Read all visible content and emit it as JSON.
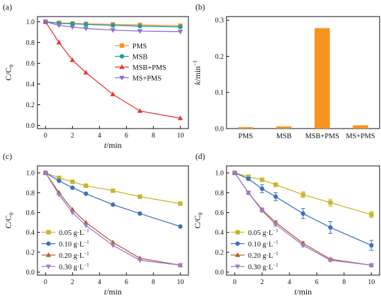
{
  "chart_data": [
    {
      "panel": "(a)",
      "type": "line",
      "xlabel": "t/min",
      "ylabel": "C/C0",
      "xlim": [
        -0.6,
        10.6
      ],
      "ylim": [
        -0.03,
        1.05
      ],
      "xticks": [
        0,
        2,
        4,
        6,
        8,
        10
      ],
      "yticks": [
        0.0,
        0.2,
        0.4,
        0.6,
        0.8,
        1.0
      ],
      "legend_position": "center-right",
      "x": [
        0,
        1,
        2,
        3,
        5,
        7,
        10
      ],
      "series": [
        {
          "name": "PMS",
          "color": "#f7931e",
          "marker": "square",
          "values": [
            1.0,
            0.99,
            0.985,
            0.98,
            0.975,
            0.97,
            0.962
          ]
        },
        {
          "name": "MSB",
          "color": "#1a9ba6",
          "marker": "circle",
          "values": [
            1.0,
            0.985,
            0.98,
            0.975,
            0.965,
            0.958,
            0.95
          ]
        },
        {
          "name": "MSB+PMS",
          "color": "#e8392f",
          "marker": "triangle-up",
          "values": [
            1.0,
            0.8,
            0.63,
            0.51,
            0.3,
            0.14,
            0.07
          ]
        },
        {
          "name": "MS+PMS",
          "color": "#8b6fd0",
          "marker": "triangle-down",
          "values": [
            1.0,
            0.965,
            0.95,
            0.935,
            0.92,
            0.91,
            0.905
          ]
        }
      ]
    },
    {
      "panel": "(b)",
      "type": "bar",
      "ylabel": "k/min-1",
      "ylim": [
        0,
        0.31
      ],
      "yticks": [
        0.0,
        0.1,
        0.2,
        0.3
      ],
      "color": "#f7931e",
      "categories": [
        "PMS",
        "MSB",
        "MSB+PMS",
        "MS+PMS"
      ],
      "values": [
        0.004,
        0.006,
        0.278,
        0.009
      ]
    },
    {
      "panel": "(c)",
      "type": "line",
      "xlabel": "t/min",
      "ylabel": "C/C0",
      "xlim": [
        -0.6,
        10.6
      ],
      "ylim": [
        -0.03,
        1.07
      ],
      "xticks": [
        0,
        2,
        4,
        6,
        8,
        10
      ],
      "yticks": [
        0.0,
        0.2,
        0.4,
        0.6,
        0.8,
        1.0
      ],
      "legend_position": "bottom-left",
      "x": [
        0,
        1,
        2,
        3,
        5,
        7,
        10
      ],
      "series": [
        {
          "name": "0.05 g·L-1",
          "color": "#c9b52c",
          "marker": "square",
          "values": [
            1.0,
            0.95,
            0.91,
            0.87,
            0.82,
            0.76,
            0.69
          ]
        },
        {
          "name": "0.10 g·L-1",
          "color": "#3d6fc2",
          "marker": "circle",
          "values": [
            1.0,
            0.92,
            0.85,
            0.79,
            0.68,
            0.59,
            0.46
          ]
        },
        {
          "name": "0.20 g·L-1",
          "color": "#b5602e",
          "marker": "triangle-up",
          "values": [
            1.0,
            0.8,
            0.63,
            0.5,
            0.3,
            0.14,
            0.07
          ]
        },
        {
          "name": "0.30 g·L-1",
          "color": "#9b7dd4",
          "marker": "triangle-down",
          "values": [
            1.0,
            0.78,
            0.6,
            0.47,
            0.27,
            0.12,
            0.07
          ]
        }
      ]
    },
    {
      "panel": "(d)",
      "type": "line",
      "xlabel": "t/min",
      "ylabel": "C/C0",
      "xlim": [
        -0.6,
        10.6
      ],
      "ylim": [
        -0.03,
        1.07
      ],
      "xticks": [
        0,
        2,
        4,
        6,
        8,
        10
      ],
      "yticks": [
        0.0,
        0.2,
        0.4,
        0.6,
        0.8,
        1.0
      ],
      "legend_position": "bottom-left",
      "x": [
        0,
        1,
        2,
        3,
        5,
        7,
        10
      ],
      "series": [
        {
          "name": "0.05 g·L-1",
          "color": "#c9b52c",
          "marker": "square",
          "values": [
            1.0,
            0.96,
            0.93,
            0.88,
            0.78,
            0.7,
            0.58
          ],
          "errors": [
            0.0,
            0.01,
            0.015,
            0.02,
            0.03,
            0.035,
            0.03
          ]
        },
        {
          "name": "0.10 g·L-1",
          "color": "#3d6fc2",
          "marker": "circle",
          "values": [
            1.0,
            0.94,
            0.84,
            0.76,
            0.59,
            0.45,
            0.27
          ],
          "errors": [
            0.0,
            0.015,
            0.04,
            0.04,
            0.05,
            0.06,
            0.05
          ]
        },
        {
          "name": "0.20 g·L-1",
          "color": "#b5602e",
          "marker": "triangle-up",
          "values": [
            1.0,
            0.8,
            0.63,
            0.5,
            0.29,
            0.13,
            0.07
          ],
          "errors": [
            0.0,
            0.01,
            0.015,
            0.015,
            0.015,
            0.01,
            0.01
          ]
        },
        {
          "name": "0.30 g·L-1",
          "color": "#9b7dd4",
          "marker": "triangle-down",
          "values": [
            1.0,
            0.8,
            0.62,
            0.48,
            0.27,
            0.12,
            0.07
          ],
          "errors": [
            0.0,
            0.01,
            0.015,
            0.015,
            0.015,
            0.01,
            0.01
          ]
        }
      ]
    }
  ]
}
